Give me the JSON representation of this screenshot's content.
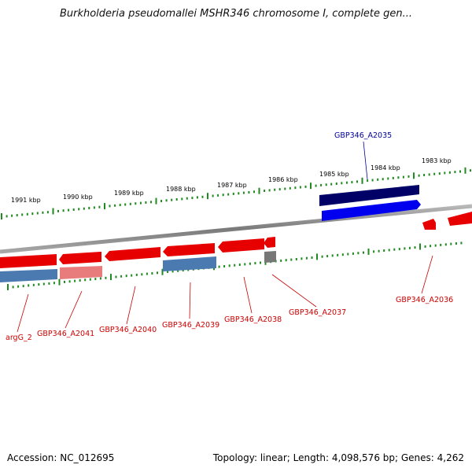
{
  "title": "Burkholderia pseudomallei MSHR346 chromosome I, complete gen...",
  "footer": {
    "accession": "Accession: NC_012695",
    "summary": "Topology: linear; Length: 4,098,576 bp; Genes: 4,262"
  },
  "colors": {
    "backbone": "#8a8a8a",
    "tick": "#1f8a1f",
    "label_red": "#cc0000",
    "label_blue": "#000099",
    "gene_red": "#e60000",
    "gene_pink": "#e87b7b",
    "gene_steel": "#4a7ab0",
    "gene_gray": "#777777",
    "gene_navy": "#000066",
    "gene_blue": "#0000ee"
  },
  "ruler": {
    "labels": [
      "1991 kbp",
      "1990 kbp",
      "1989 kbp",
      "1988 kbp",
      "1987 kbp",
      "1986 kbp",
      "1985 kbp",
      "1984 kbp",
      "1983 kbp"
    ]
  },
  "gene_labels": [
    {
      "name": "GBP346_A2035",
      "color": "blue"
    },
    {
      "name": "GBP346_A2036",
      "color": "red"
    },
    {
      "name": "GBP346_A2037",
      "color": "red"
    },
    {
      "name": "GBP346_A2038",
      "color": "red"
    },
    {
      "name": "GBP346_A2039",
      "color": "red"
    },
    {
      "name": "GBP346_A2040",
      "color": "red"
    },
    {
      "name": "GBP346_A2041",
      "color": "red"
    },
    {
      "name": "argG_2",
      "color": "red"
    }
  ]
}
